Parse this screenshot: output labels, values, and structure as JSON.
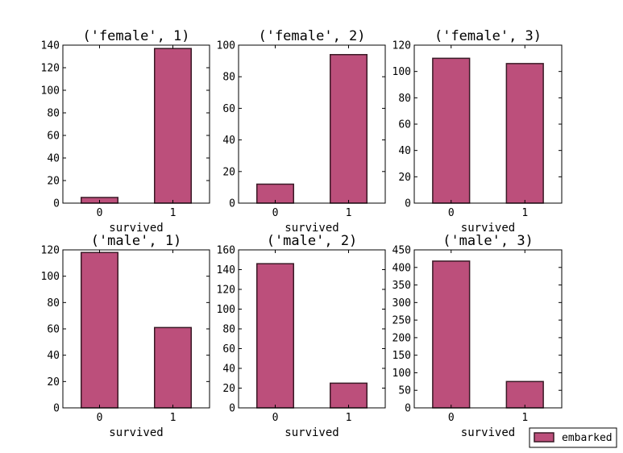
{
  "chart_data": [
    {
      "type": "bar",
      "title": "('female', 1)",
      "xlabel": "survived",
      "categories": [
        "0",
        "1"
      ],
      "values": [
        5,
        137
      ],
      "ylim": [
        0,
        140
      ],
      "yticks": [
        0,
        20,
        40,
        60,
        80,
        100,
        120,
        140
      ]
    },
    {
      "type": "bar",
      "title": "('female', 2)",
      "xlabel": "survived",
      "categories": [
        "0",
        "1"
      ],
      "values": [
        12,
        94
      ],
      "ylim": [
        0,
        100
      ],
      "yticks": [
        0,
        20,
        40,
        60,
        80,
        100
      ]
    },
    {
      "type": "bar",
      "title": "('female', 3)",
      "xlabel": "survived",
      "categories": [
        "0",
        "1"
      ],
      "values": [
        110,
        106
      ],
      "ylim": [
        0,
        120
      ],
      "yticks": [
        0,
        20,
        40,
        60,
        80,
        100,
        120
      ]
    },
    {
      "type": "bar",
      "title": "('male', 1)",
      "xlabel": "survived",
      "categories": [
        "0",
        "1"
      ],
      "values": [
        118,
        61
      ],
      "ylim": [
        0,
        120
      ],
      "yticks": [
        0,
        20,
        40,
        60,
        80,
        100,
        120
      ]
    },
    {
      "type": "bar",
      "title": "('male', 2)",
      "xlabel": "survived",
      "categories": [
        "0",
        "1"
      ],
      "values": [
        146,
        25
      ],
      "ylim": [
        0,
        160
      ],
      "yticks": [
        0,
        20,
        40,
        60,
        80,
        100,
        120,
        140,
        160
      ]
    },
    {
      "type": "bar",
      "title": "('male', 3)",
      "xlabel": "survived",
      "categories": [
        "0",
        "1"
      ],
      "values": [
        418,
        75
      ],
      "ylim": [
        0,
        450
      ],
      "yticks": [
        0,
        50,
        100,
        150,
        200,
        250,
        300,
        350,
        400,
        450
      ]
    }
  ],
  "legend": {
    "label": "embarked",
    "placement": "bottom-right"
  },
  "colors": {
    "bar_fill": "#bc4f7b",
    "bar_edge": "#3a1a26"
  }
}
